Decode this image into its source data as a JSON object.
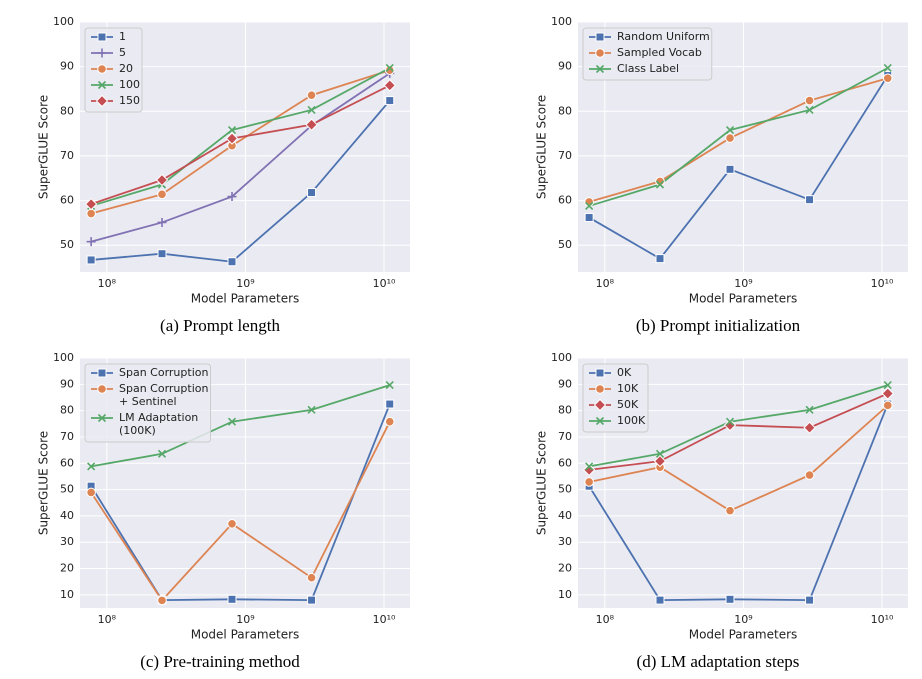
{
  "chart_data": [
    {
      "type": "line",
      "caption": "(a) Prompt length",
      "xlabel": "Model Parameters",
      "ylabel": "SuperGLUE Score",
      "xscale": "log",
      "grid": true,
      "legend": "upper left",
      "x": [
        77000000,
        250000000,
        800000000,
        3000000000,
        11000000000
      ],
      "xlim": [
        64000000,
        15400000000
      ],
      "xticks": [
        {
          "value": 100000000,
          "label": "10⁸"
        },
        {
          "value": 1000000000,
          "label": "10⁹"
        },
        {
          "value": 10000000000,
          "label": "10¹⁰"
        }
      ],
      "ylim": [
        44,
        100
      ],
      "yticks": [
        50,
        60,
        70,
        80,
        90,
        100
      ],
      "series": [
        {
          "name": "1",
          "color": "#4c72b0",
          "marker": "square",
          "values": [
            46.7,
            48.1,
            46.3,
            61.8,
            82.4
          ]
        },
        {
          "name": "5",
          "color": "#8172b3",
          "marker": "plus",
          "values": [
            50.8,
            55.1,
            60.9,
            76.8,
            88.5
          ]
        },
        {
          "name": "20",
          "color": "#dd8452",
          "marker": "circle",
          "values": [
            57.1,
            61.4,
            72.3,
            83.6,
            89.2
          ]
        },
        {
          "name": "100",
          "color": "#55a868",
          "marker": "x",
          "values": [
            58.8,
            63.6,
            75.8,
            80.3,
            89.7
          ]
        },
        {
          "name": "150",
          "color": "#c44e52",
          "marker": "diamond",
          "values": [
            59.2,
            64.6,
            73.9,
            77.0,
            85.8
          ]
        }
      ]
    },
    {
      "type": "line",
      "caption": "(b) Prompt initialization",
      "xlabel": "Model Parameters",
      "ylabel": "SuperGLUE Score",
      "xscale": "log",
      "grid": true,
      "legend": "upper left",
      "x": [
        77000000,
        250000000,
        800000000,
        3000000000,
        11000000000
      ],
      "xlim": [
        64000000,
        15400000000
      ],
      "xticks": [
        {
          "value": 100000000,
          "label": "10⁸"
        },
        {
          "value": 1000000000,
          "label": "10⁹"
        },
        {
          "value": 10000000000,
          "label": "10¹⁰"
        }
      ],
      "ylim": [
        44,
        100
      ],
      "yticks": [
        50,
        60,
        70,
        80,
        90,
        100
      ],
      "series": [
        {
          "name": "Random Uniform",
          "color": "#4c72b0",
          "marker": "square",
          "values": [
            56.2,
            47.0,
            67.0,
            60.2,
            88.0
          ]
        },
        {
          "name": "Sampled Vocab",
          "color": "#dd8452",
          "marker": "circle",
          "values": [
            59.7,
            64.3,
            74.0,
            82.4,
            87.4
          ]
        },
        {
          "name": "Class Label",
          "color": "#55a868",
          "marker": "x",
          "values": [
            58.8,
            63.6,
            75.8,
            80.3,
            89.7
          ]
        }
      ]
    },
    {
      "type": "line",
      "caption": "(c) Pre-training method",
      "xlabel": "Model Parameters",
      "ylabel": "SuperGLUE Score",
      "xscale": "log",
      "grid": true,
      "legend": "upper left",
      "x": [
        77000000,
        250000000,
        800000000,
        3000000000,
        11000000000
      ],
      "xlim": [
        64000000,
        15400000000
      ],
      "xticks": [
        {
          "value": 100000000,
          "label": "10⁸"
        },
        {
          "value": 1000000000,
          "label": "10⁹"
        },
        {
          "value": 10000000000,
          "label": "10¹⁰"
        }
      ],
      "ylim": [
        5,
        100
      ],
      "yticks": [
        10,
        20,
        30,
        40,
        50,
        60,
        70,
        80,
        90,
        100
      ],
      "series": [
        {
          "name": "Span Corruption",
          "color": "#4c72b0",
          "marker": "square",
          "values": [
            51.3,
            8.0,
            8.3,
            8.0,
            82.5
          ]
        },
        {
          "name": "Span Corruption\n+ Sentinel",
          "color": "#dd8452",
          "marker": "circle",
          "values": [
            48.9,
            7.9,
            37.0,
            16.5,
            75.8
          ]
        },
        {
          "name": "LM Adaptation\n(100K)",
          "color": "#55a868",
          "marker": "x",
          "values": [
            58.8,
            63.6,
            75.8,
            80.3,
            89.7
          ]
        }
      ]
    },
    {
      "type": "line",
      "caption": "(d) LM adaptation steps",
      "xlabel": "Model Parameters",
      "ylabel": "SuperGLUE Score",
      "xscale": "log",
      "grid": true,
      "legend": "upper left",
      "x": [
        77000000,
        250000000,
        800000000,
        3000000000,
        11000000000
      ],
      "xlim": [
        64000000,
        15400000000
      ],
      "xticks": [
        {
          "value": 100000000,
          "label": "10⁸"
        },
        {
          "value": 1000000000,
          "label": "10⁹"
        },
        {
          "value": 10000000000,
          "label": "10¹⁰"
        }
      ],
      "ylim": [
        5,
        100
      ],
      "yticks": [
        10,
        20,
        30,
        40,
        50,
        60,
        70,
        80,
        90,
        100
      ],
      "series": [
        {
          "name": "0K",
          "color": "#4c72b0",
          "marker": "square",
          "values": [
            51.3,
            8.0,
            8.3,
            8.0,
            82.5
          ]
        },
        {
          "name": "10K",
          "color": "#dd8452",
          "marker": "circle",
          "values": [
            52.9,
            58.5,
            42.0,
            55.5,
            82.0
          ]
        },
        {
          "name": "50K",
          "color": "#c44e52",
          "marker": "diamond",
          "values": [
            57.5,
            60.8,
            74.5,
            73.5,
            86.5
          ]
        },
        {
          "name": "100K",
          "color": "#55a868",
          "marker": "x",
          "values": [
            58.8,
            63.6,
            75.8,
            80.3,
            89.7
          ]
        }
      ]
    }
  ]
}
